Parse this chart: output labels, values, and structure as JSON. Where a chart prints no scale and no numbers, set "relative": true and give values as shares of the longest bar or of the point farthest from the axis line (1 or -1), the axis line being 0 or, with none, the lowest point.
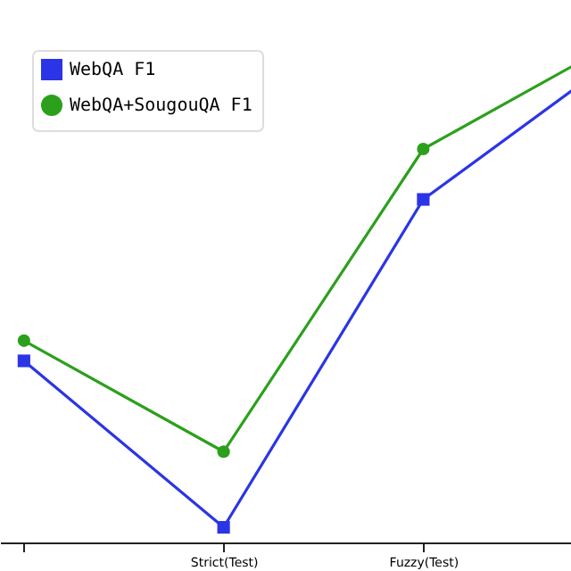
{
  "chart_data": {
    "type": "line",
    "relative": true,
    "legend": "top left",
    "grid": false,
    "line_style": "solid",
    "categories": [
      null,
      "Strict(Test)",
      "Fuzzy(Test)",
      null
    ],
    "series": [
      {
        "name": "WebQA F1",
        "color": "#2b35e6",
        "marker": "square",
        "values": [
          0.36,
          0.03,
          0.68,
          0.97
        ]
      },
      {
        "name": "WebQA+SougouQA F1",
        "color": "#2ca01c",
        "marker": "circle",
        "values": [
          0.4,
          0.18,
          0.78,
          1.0
        ]
      }
    ]
  }
}
